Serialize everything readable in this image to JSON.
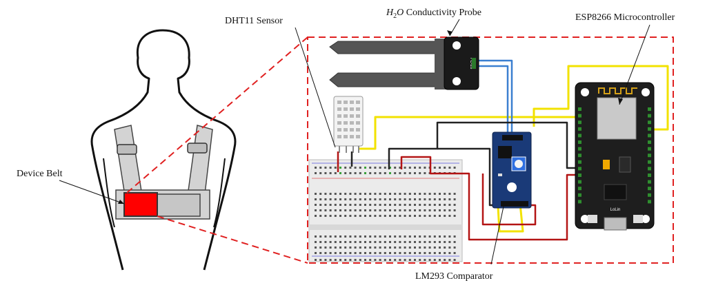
{
  "labels": {
    "dht11": "DHT11 Sensor",
    "probe_var": "H",
    "probe_sub": "2",
    "probe_var2": "O",
    "probe_rest": " Conductivity Probe",
    "esp8266": "ESP8266 Microcontroller",
    "device_belt": "Device Belt",
    "lm293": "LM293 Comparator"
  },
  "board_text": {
    "probe_model": "FC-28",
    "mcu_brand": "LoLin"
  },
  "colors": {
    "zoom_frame": "#e02020",
    "belt_device": "#ff0000",
    "wire_yellow": "#f2e200",
    "wire_blue": "#3a7fd0",
    "wire_red": "#b31414",
    "wire_black": "#222222",
    "module_blue": "#1a3a78",
    "mcu_black": "#1e1e1e"
  }
}
